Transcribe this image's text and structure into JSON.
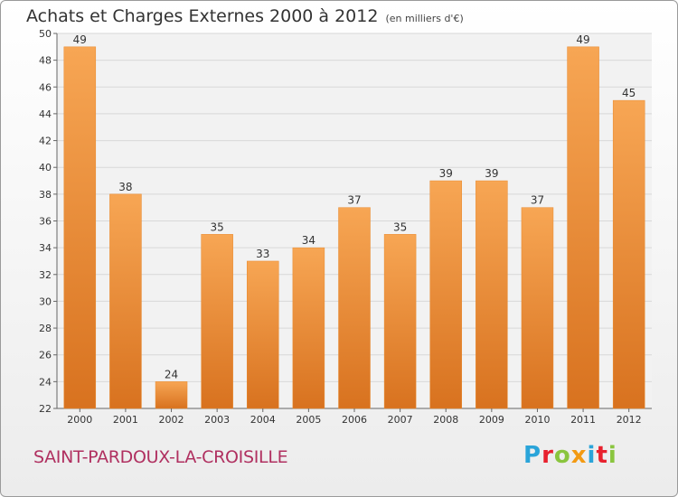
{
  "header": {
    "title": "Achats et Charges Externes 2000 à 2012",
    "unit": "(en milliers d'€)"
  },
  "footer": {
    "town": "SAINT-PARDOUX-LA-CROISILLE",
    "logo_letters": [
      "P",
      "r",
      "o",
      "x",
      "i",
      "t",
      "i"
    ],
    "logo_colors": [
      "#2aa4d9",
      "#e8212e",
      "#8ac53e",
      "#f39a12",
      "#2aa4d9",
      "#e8212e",
      "#8ac53e"
    ]
  },
  "chart_data": {
    "type": "bar",
    "title": "Achats et Charges Externes 2000 à 2012",
    "subtitle": "(en milliers d'€)",
    "categories": [
      "2000",
      "2001",
      "2002",
      "2003",
      "2004",
      "2005",
      "2006",
      "2007",
      "2008",
      "2009",
      "2010",
      "2011",
      "2012"
    ],
    "values": [
      49,
      38,
      24,
      35,
      33,
      34,
      37,
      35,
      39,
      39,
      37,
      49,
      45
    ],
    "ylim": [
      22,
      50
    ],
    "yticks": [
      22,
      24,
      26,
      28,
      30,
      32,
      34,
      36,
      38,
      40,
      42,
      44,
      46,
      48,
      50
    ],
    "grid": true,
    "bar_color_top": "#f7a654",
    "bar_color_bottom": "#d8721f"
  }
}
